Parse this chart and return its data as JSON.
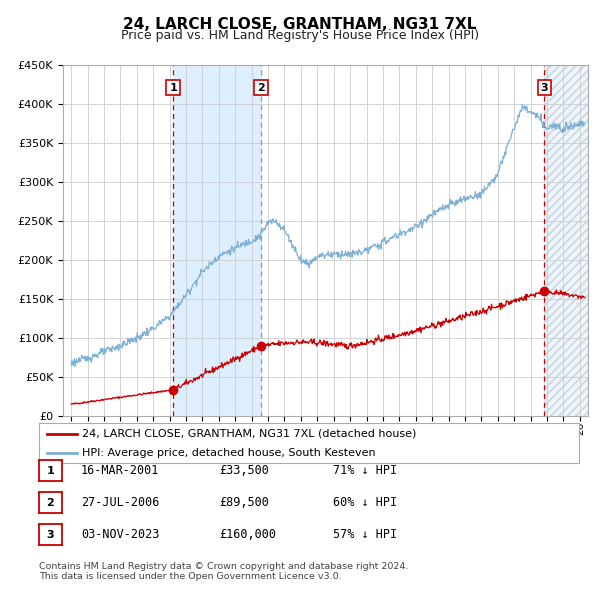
{
  "title": "24, LARCH CLOSE, GRANTHAM, NG31 7XL",
  "subtitle": "Price paid vs. HM Land Registry's House Price Index (HPI)",
  "legend_label_red": "24, LARCH CLOSE, GRANTHAM, NG31 7XL (detached house)",
  "legend_label_blue": "HPI: Average price, detached house, South Kesteven",
  "footer": "Contains HM Land Registry data © Crown copyright and database right 2024.\nThis data is licensed under the Open Government Licence v3.0.",
  "transactions": [
    {
      "num": 1,
      "date": "16-MAR-2001",
      "date_val": 2001.21,
      "price": 33500,
      "pct": "71%"
    },
    {
      "num": 2,
      "date": "27-JUL-2006",
      "date_val": 2006.57,
      "price": 89500,
      "pct": "60%"
    },
    {
      "num": 3,
      "date": "03-NOV-2023",
      "date_val": 2023.84,
      "price": 160000,
      "pct": "57%"
    }
  ],
  "ylim": [
    0,
    450000
  ],
  "xlim_start": 1994.5,
  "xlim_end": 2026.5,
  "background_color": "#ffffff",
  "plot_bg_color": "#ffffff",
  "grid_color": "#cccccc",
  "red_line_color": "#cc0000",
  "blue_line_color": "#7bafd4",
  "shade_color": "#ddeeff",
  "hatch_color": "#aabbdd",
  "vline_red_color": "#cc0000",
  "vline_gray_color": "#999999",
  "title_fontsize": 11,
  "subtitle_fontsize": 9
}
